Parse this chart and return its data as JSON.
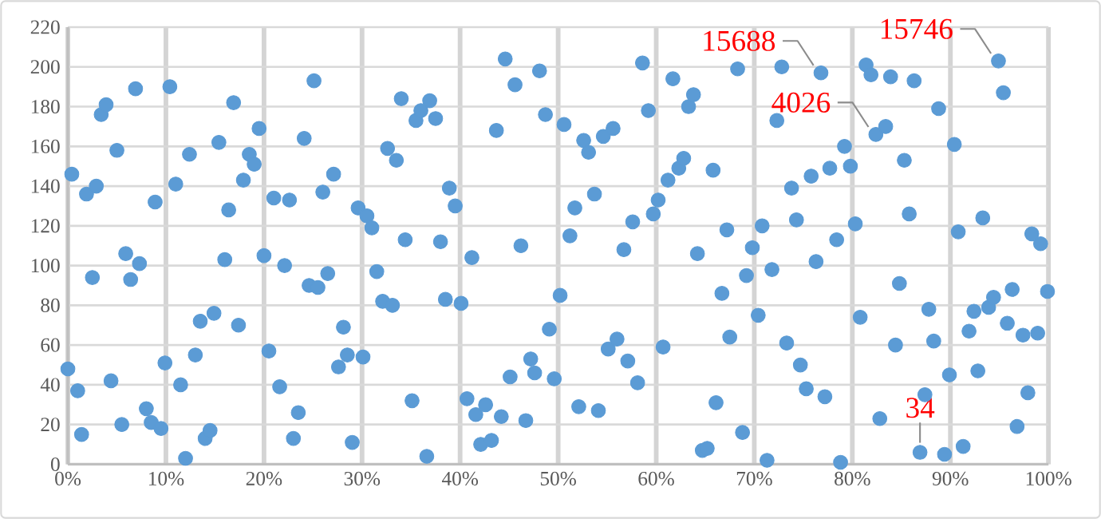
{
  "chart_data": {
    "type": "scatter",
    "color": "#5b9bd5",
    "marker": "circle",
    "grid": true,
    "x": [
      0.0,
      0.4,
      1.0,
      1.4,
      1.9,
      2.5,
      2.9,
      3.4,
      3.9,
      4.4,
      5.0,
      5.5,
      5.9,
      6.4,
      6.9,
      7.3,
      8.0,
      8.5,
      8.9,
      9.5,
      9.9,
      10.4,
      11.0,
      11.5,
      12.0,
      12.4,
      13.0,
      13.5,
      14.0,
      14.5,
      14.9,
      15.4,
      16.0,
      16.4,
      16.9,
      17.4,
      17.9,
      18.5,
      19.0,
      19.5,
      20.0,
      20.5,
      21.0,
      21.6,
      22.1,
      22.6,
      23.0,
      23.5,
      24.1,
      24.6,
      25.1,
      25.5,
      26.0,
      26.5,
      27.1,
      27.6,
      28.1,
      28.5,
      29.0,
      29.6,
      30.1,
      30.5,
      31.0,
      31.5,
      32.1,
      32.6,
      33.1,
      33.5,
      34.0,
      34.4,
      35.1,
      35.5,
      36.0,
      36.6,
      36.9,
      37.5,
      38.0,
      38.5,
      38.9,
      39.5,
      40.1,
      40.7,
      41.2,
      41.6,
      42.1,
      42.6,
      43.2,
      43.7,
      44.2,
      44.6,
      45.1,
      45.6,
      46.2,
      46.7,
      47.2,
      47.6,
      48.1,
      48.7,
      49.1,
      49.6,
      50.2,
      50.6,
      51.2,
      51.7,
      52.1,
      52.6,
      53.1,
      53.7,
      54.1,
      54.6,
      55.1,
      55.6,
      56.0,
      56.7,
      57.1,
      57.6,
      58.1,
      58.6,
      59.2,
      59.7,
      60.2,
      60.7,
      61.2,
      61.7,
      62.3,
      62.8,
      63.3,
      63.8,
      64.2,
      64.7,
      65.2,
      65.8,
      66.1,
      66.7,
      67.2,
      67.5,
      68.3,
      68.8,
      69.2,
      69.8,
      70.4,
      70.8,
      71.3,
      71.8,
      72.3,
      72.8,
      73.3,
      73.8,
      74.3,
      74.7,
      75.3,
      75.8,
      76.3,
      76.8,
      77.2,
      77.7,
      78.4,
      78.8,
      79.2,
      79.8,
      80.3,
      80.8,
      81.4,
      81.9,
      82.4,
      82.8,
      83.4,
      83.9,
      84.4,
      84.8,
      85.3,
      85.8,
      86.3,
      86.9,
      87.4,
      87.8,
      88.3,
      88.8,
      89.4,
      89.9,
      90.4,
      90.8,
      91.3,
      91.9,
      92.4,
      92.8,
      93.3,
      93.9,
      94.4,
      94.9,
      95.4,
      95.8,
      96.3,
      96.8,
      97.4,
      97.9,
      98.3,
      98.9,
      99.2,
      99.9
    ],
    "values": [
      48,
      146,
      37,
      15,
      136,
      94,
      140,
      176,
      181,
      42,
      158,
      20,
      106,
      93,
      189,
      101,
      28,
      21,
      132,
      18,
      51,
      190,
      141,
      40,
      3,
      156,
      55,
      72,
      13,
      17,
      76,
      162,
      103,
      128,
      182,
      70,
      143,
      156,
      151,
      169,
      105,
      57,
      134,
      39,
      100,
      133,
      13,
      26,
      164,
      90,
      193,
      89,
      137,
      96,
      146,
      49,
      69,
      55,
      11,
      129,
      54,
      125,
      119,
      97,
      82,
      159,
      80,
      153,
      184,
      113,
      32,
      173,
      178,
      4,
      183,
      174,
      112,
      83,
      139,
      130,
      81,
      33,
      104,
      25,
      10,
      30,
      12,
      168,
      24,
      204,
      44,
      191,
      110,
      22,
      53,
      46,
      198,
      176,
      68,
      43,
      85,
      171,
      115,
      129,
      29,
      163,
      157,
      136,
      27,
      165,
      58,
      169,
      63,
      108,
      52,
      122,
      41,
      202,
      178,
      126,
      133,
      59,
      143,
      194,
      149,
      154,
      180,
      186,
      106,
      7,
      8,
      148,
      31,
      86,
      118,
      64,
      199,
      16,
      95,
      109,
      75,
      120,
      2,
      98,
      173,
      200,
      61,
      139,
      123,
      50,
      38,
      145,
      102,
      197,
      34,
      149,
      113,
      1,
      160,
      150,
      121,
      74,
      201,
      196,
      166,
      23,
      170,
      195,
      60,
      91,
      153,
      126,
      193,
      6,
      35,
      78,
      62,
      179,
      5,
      45,
      161,
      117,
      9,
      67,
      77,
      47,
      124,
      79,
      84,
      203,
      187,
      71,
      88,
      19,
      65,
      36,
      116,
      66,
      111,
      87
    ],
    "xlim": [
      0,
      100
    ],
    "xticks": [
      {
        "value": 0,
        "label": "0%"
      },
      {
        "value": 10,
        "label": "10%"
      },
      {
        "value": 20,
        "label": "20%"
      },
      {
        "value": 30,
        "label": "30%"
      },
      {
        "value": 40,
        "label": "40%"
      },
      {
        "value": 50,
        "label": "50%"
      },
      {
        "value": 60,
        "label": "60%"
      },
      {
        "value": 70,
        "label": "70%"
      },
      {
        "value": 80,
        "label": "80%"
      },
      {
        "value": 90,
        "label": "90%"
      },
      {
        "value": 100,
        "label": "100%"
      }
    ],
    "ylim": [
      0,
      220
    ],
    "yticks": [
      0,
      20,
      40,
      60,
      80,
      100,
      120,
      140,
      160,
      180,
      200,
      220
    ],
    "annotations": [
      {
        "text": "15688",
        "x": 76.8,
        "y": 197
      },
      {
        "text": "15746",
        "x": 94.9,
        "y": 203
      },
      {
        "text": "4026",
        "x": 82.4,
        "y": 166
      },
      {
        "text": "34",
        "x": 86.9,
        "y": 6
      }
    ]
  }
}
